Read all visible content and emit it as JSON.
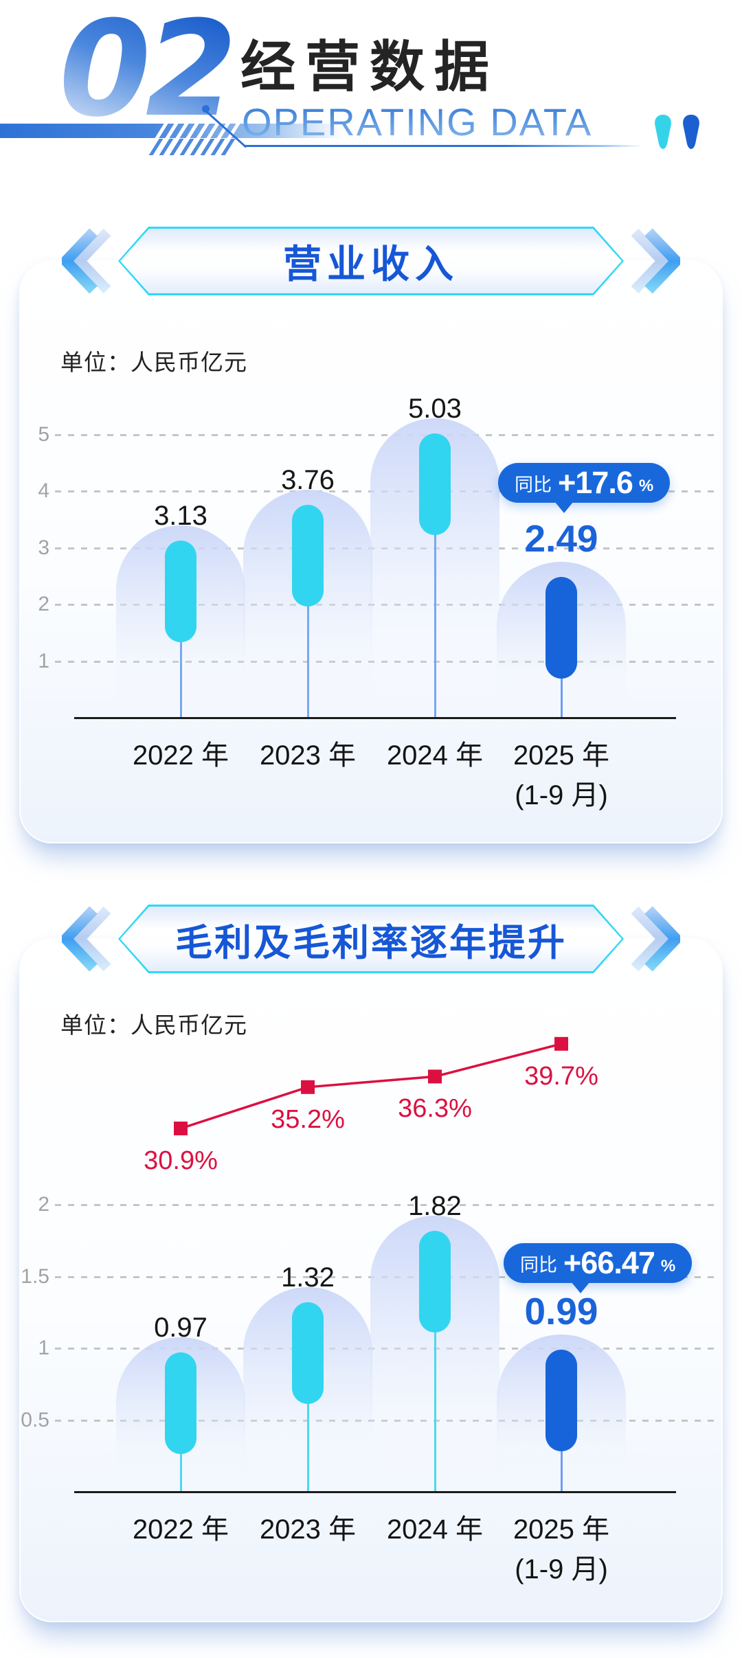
{
  "header": {
    "section_number": "02",
    "title_cn": "经营数据",
    "title_en": "OPERATING DATA"
  },
  "colors": {
    "cyan_bar": "#31d5f0",
    "blue_bar": "#1763d9",
    "badge_blue": "#1868dc",
    "title_blue": "#1657d6",
    "red_line": "#dc1040",
    "grid_gray": "#c5c5c5"
  },
  "chart_data": [
    {
      "type": "bar",
      "title": "营业收入",
      "unit_label": "单位：人民币亿元",
      "categories": [
        [
          "2022 年"
        ],
        [
          "2023 年"
        ],
        [
          "2024 年"
        ],
        [
          "2025 年",
          "(1-9 月)"
        ]
      ],
      "values": [
        3.13,
        3.76,
        5.03,
        2.49
      ],
      "value_labels": [
        "3.13",
        "3.76",
        "5.03",
        "2.49"
      ],
      "highlight_index": 3,
      "yticks": [
        1,
        2,
        3,
        4,
        5
      ],
      "ylim": [
        0,
        5.6
      ],
      "grid": "dashed",
      "legend": "none",
      "badge": {
        "prefix": "同比",
        "value": "+17.6",
        "suffix": "%"
      }
    },
    {
      "type": "bar+line",
      "title": "毛利及毛利率逐年提升",
      "unit_label": "单位：人民币亿元",
      "categories": [
        [
          "2022 年"
        ],
        [
          "2023 年"
        ],
        [
          "2024 年"
        ],
        [
          "2025 年",
          "(1-9 月)"
        ]
      ],
      "series": [
        {
          "name": "毛利",
          "type": "bar",
          "values": [
            0.97,
            1.32,
            1.82,
            0.99
          ],
          "value_labels": [
            "0.97",
            "1.32",
            "1.82",
            "0.99"
          ]
        },
        {
          "name": "毛利率",
          "type": "line",
          "values": [
            30.9,
            35.2,
            36.3,
            39.7
          ],
          "value_labels": [
            "30.9%",
            "35.2%",
            "36.3%",
            "39.7%"
          ],
          "color": "#dc1040"
        }
      ],
      "highlight_index": 3,
      "yticks": [
        0.5,
        1,
        1.5,
        2
      ],
      "ylim": [
        0,
        2.2
      ],
      "grid": "dashed",
      "legend": "none",
      "badge": {
        "prefix": "同比",
        "value": "+66.47",
        "suffix": "%"
      }
    }
  ]
}
